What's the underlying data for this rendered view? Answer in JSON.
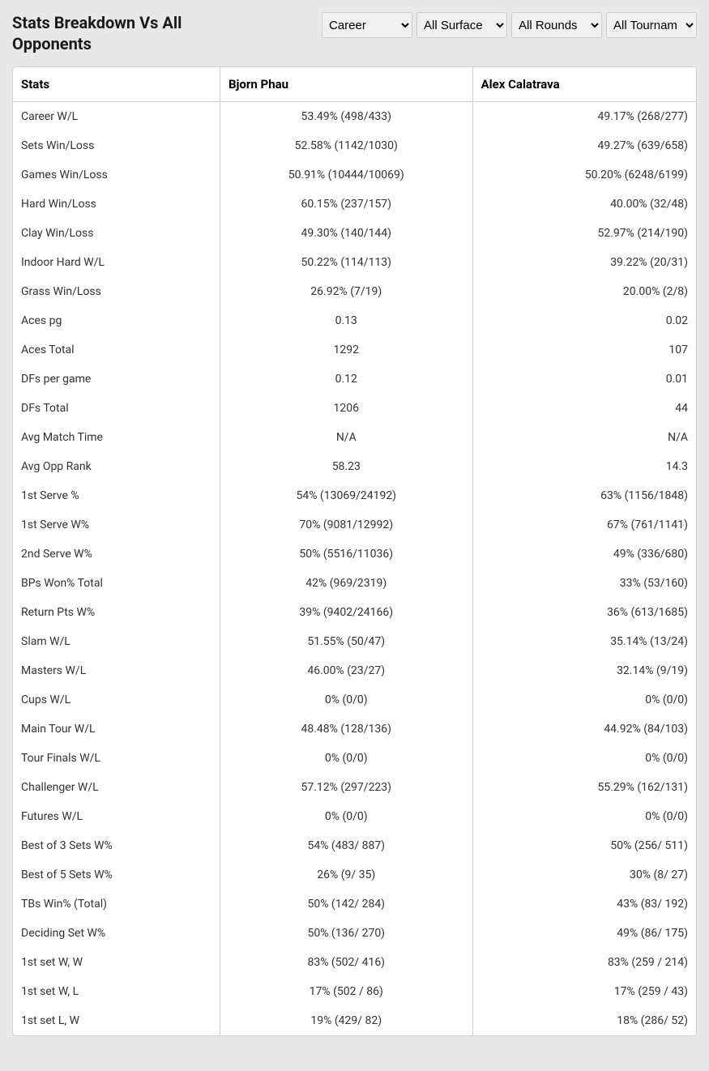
{
  "header": {
    "title": "Stats Breakdown Vs All Opponents"
  },
  "filters": {
    "career": {
      "selected": "Career",
      "options": [
        "Career"
      ]
    },
    "surface": {
      "selected": "All Surface",
      "options": [
        "All Surface"
      ]
    },
    "rounds": {
      "selected": "All Rounds",
      "options": [
        "All Rounds"
      ]
    },
    "tournament": {
      "selected": "All Tournam",
      "options": [
        "All Tournam"
      ]
    }
  },
  "table": {
    "columns": [
      "Stats",
      "Bjorn Phau",
      "Alex Calatrava"
    ],
    "rows": [
      [
        "Career W/L",
        "53.49% (498/433)",
        "49.17% (268/277)"
      ],
      [
        "Sets Win/Loss",
        "52.58% (1142/1030)",
        "49.27% (639/658)"
      ],
      [
        "Games Win/Loss",
        "50.91% (10444/10069)",
        "50.20% (6248/6199)"
      ],
      [
        "Hard Win/Loss",
        "60.15% (237/157)",
        "40.00% (32/48)"
      ],
      [
        "Clay Win/Loss",
        "49.30% (140/144)",
        "52.97% (214/190)"
      ],
      [
        "Indoor Hard W/L",
        "50.22% (114/113)",
        "39.22% (20/31)"
      ],
      [
        "Grass Win/Loss",
        "26.92% (7/19)",
        "20.00% (2/8)"
      ],
      [
        "Aces pg",
        "0.13",
        "0.02"
      ],
      [
        "Aces Total",
        "1292",
        "107"
      ],
      [
        "DFs per game",
        "0.12",
        "0.01"
      ],
      [
        "DFs Total",
        "1206",
        "44"
      ],
      [
        "Avg Match Time",
        "N/A",
        "N/A"
      ],
      [
        "Avg Opp Rank",
        "58.23",
        "14.3"
      ],
      [
        "1st Serve %",
        "54% (13069/24192)",
        "63% (1156/1848)"
      ],
      [
        "1st Serve W%",
        "70% (9081/12992)",
        "67% (761/1141)"
      ],
      [
        "2nd Serve W%",
        "50% (5516/11036)",
        "49% (336/680)"
      ],
      [
        "BPs Won% Total",
        "42% (969/2319)",
        "33% (53/160)"
      ],
      [
        "Return Pts W%",
        "39% (9402/24166)",
        "36% (613/1685)"
      ],
      [
        "Slam W/L",
        "51.55% (50/47)",
        "35.14% (13/24)"
      ],
      [
        "Masters W/L",
        "46.00% (23/27)",
        "32.14% (9/19)"
      ],
      [
        "Cups W/L",
        "0% (0/0)",
        "0% (0/0)"
      ],
      [
        "Main Tour W/L",
        "48.48% (128/136)",
        "44.92% (84/103)"
      ],
      [
        "Tour Finals W/L",
        "0% (0/0)",
        "0% (0/0)"
      ],
      [
        "Challenger W/L",
        "57.12% (297/223)",
        "55.29% (162/131)"
      ],
      [
        "Futures W/L",
        "0% (0/0)",
        "0% (0/0)"
      ],
      [
        "Best of 3 Sets W%",
        "54% (483/ 887)",
        "50% (256/ 511)"
      ],
      [
        "Best of 5 Sets W%",
        "26% (9/ 35)",
        "30% (8/ 27)"
      ],
      [
        "TBs Win% (Total)",
        "50% (142/ 284)",
        "43% (83/ 192)"
      ],
      [
        "Deciding Set W%",
        "50% (136/ 270)",
        "49% (86/ 175)"
      ],
      [
        "1st set W, W",
        "83% (502/ 416)",
        "83% (259 / 214)"
      ],
      [
        "1st set W, L",
        "17% (502 / 86)",
        "17% (259 / 43)"
      ],
      [
        "1st set L, W",
        "19% (429/ 82)",
        "18% (286/ 52)"
      ]
    ]
  }
}
